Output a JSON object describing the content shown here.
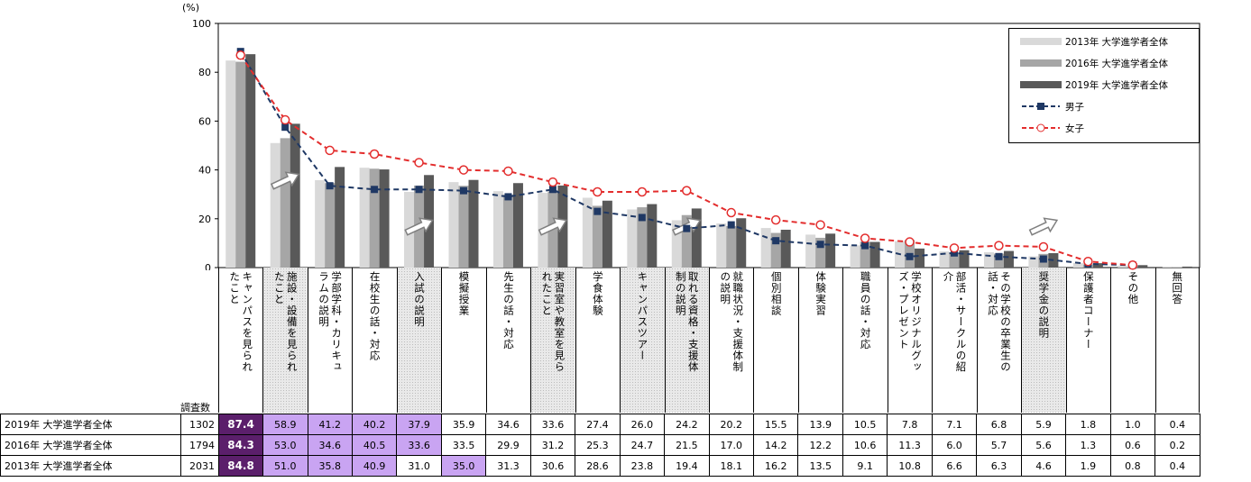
{
  "chart_data": {
    "type": "bar",
    "y_unit_label": "(%)",
    "ylim": [
      0,
      100
    ],
    "yticks": [
      0,
      20,
      40,
      60,
      80,
      100
    ],
    "grid": false,
    "legend_position": "top-right",
    "categories": [
      "キャンパスを見られたこと",
      "施設・設備を見られたこと",
      "学部学科・カリキュラムの説明",
      "在校生の話・対応",
      "入試の説明",
      "模擬授業",
      "先生の話・対応",
      "実習室や教室を見られたこと",
      "学食体験",
      "キャンパスツアー",
      "取れる資格・支援体制の説明",
      "就職状況・支援体制の説明",
      "個別相談",
      "体験実習",
      "職員の話・対応",
      "学校オリジナルグッズ・プレゼント",
      "部活・サークルの紹介",
      "その学校の卒業生の話・対応",
      "奨学金の説明",
      "保護者コーナー",
      "その他",
      "無回答"
    ],
    "category_lines": [
      [
        "キャンパスを見られ",
        "たこと"
      ],
      [
        "施設・設備を見られ",
        "たこと"
      ],
      [
        "学部学科・カリキュ",
        "ラムの説明"
      ],
      [
        "在校生の話・対応"
      ],
      [
        "入試の説明"
      ],
      [
        "模擬授業"
      ],
      [
        "先生の話・対応"
      ],
      [
        "実習室や教室を見ら",
        "れたこと"
      ],
      [
        "学食体験"
      ],
      [
        "キャンパスツアー"
      ],
      [
        "取れる資格・支援体",
        "制の説明"
      ],
      [
        "就職状況・支援体制",
        "の説明"
      ],
      [
        "個別相談"
      ],
      [
        "体験実習"
      ],
      [
        "職員の話・対応"
      ],
      [
        "学校オリジナルグッ",
        "ズ・プレゼント"
      ],
      [
        "部活・サークルの紹",
        "介"
      ],
      [
        "その学校の卒業生の",
        "話・対応"
      ],
      [
        "奨学金の説明"
      ],
      [
        "保護者コーナー"
      ],
      [
        "その他"
      ],
      [
        "無回答"
      ]
    ],
    "shaded_categories": [
      1,
      4,
      7,
      9,
      10,
      18
    ],
    "series": [
      {
        "name": "2013年 大学進学者全体",
        "kind": "bar",
        "color": "#d9d9d9",
        "n": "2031",
        "values": [
          84.8,
          51.0,
          35.8,
          40.9,
          31.0,
          35.0,
          31.3,
          30.6,
          28.6,
          23.8,
          19.4,
          18.1,
          16.2,
          13.5,
          9.1,
          10.8,
          6.6,
          6.3,
          4.6,
          1.9,
          0.8,
          0.4
        ]
      },
      {
        "name": "2016年 大学進学者全体",
        "kind": "bar",
        "color": "#a6a6a6",
        "n": "1794",
        "values": [
          84.3,
          53.0,
          34.6,
          40.5,
          33.6,
          33.5,
          29.9,
          31.2,
          25.3,
          24.7,
          21.5,
          17.0,
          14.2,
          12.2,
          10.6,
          11.3,
          6.0,
          5.7,
          5.6,
          1.3,
          0.6,
          0.2
        ]
      },
      {
        "name": "2019年 大学進学者全体",
        "kind": "bar",
        "color": "#595959",
        "n": "1302",
        "values": [
          87.4,
          58.9,
          41.2,
          40.2,
          37.9,
          35.9,
          34.6,
          33.6,
          27.4,
          26.0,
          24.2,
          20.2,
          15.5,
          13.9,
          10.5,
          7.8,
          7.1,
          6.8,
          5.9,
          1.8,
          1.0,
          0.4
        ]
      },
      {
        "name": "男子",
        "kind": "line",
        "color": "#1f3864",
        "values": [
          88.5,
          57.5,
          33.5,
          32.0,
          32.0,
          31.5,
          29.0,
          32.0,
          23.0,
          20.5,
          16.0,
          17.5,
          11.0,
          9.5,
          9.0,
          4.5,
          6.0,
          4.5,
          3.5,
          1.5,
          1.0,
          null
        ]
      },
      {
        "name": "女子",
        "kind": "line",
        "color": "#e32d2d",
        "values": [
          87.0,
          60.5,
          48.0,
          46.5,
          43.0,
          40.0,
          39.5,
          35.0,
          31.0,
          31.0,
          31.5,
          22.5,
          19.5,
          17.5,
          12.0,
          10.5,
          8.0,
          9.0,
          8.5,
          2.5,
          1.0,
          null
        ]
      }
    ],
    "table": {
      "header_label": "調査数",
      "rows": [
        {
          "label": "2019年 大学進学者全体",
          "n": "1302",
          "values": [
            "87.4",
            "58.9",
            "41.2",
            "40.2",
            "37.9",
            "35.9",
            "34.6",
            "33.6",
            "27.4",
            "26.0",
            "24.2",
            "20.2",
            "15.5",
            "13.9",
            "10.5",
            "7.8",
            "7.1",
            "6.8",
            "5.9",
            "1.8",
            "1.0",
            "0.4"
          ],
          "highlight": {
            "0": "dark",
            "1": "light",
            "2": "light",
            "3": "light",
            "4": "light"
          }
        },
        {
          "label": "2016年 大学進学者全体",
          "n": "1794",
          "values": [
            "84.3",
            "53.0",
            "34.6",
            "40.5",
            "33.6",
            "33.5",
            "29.9",
            "31.2",
            "25.3",
            "24.7",
            "21.5",
            "17.0",
            "14.2",
            "12.2",
            "10.6",
            "11.3",
            "6.0",
            "5.7",
            "5.6",
            "1.3",
            "0.6",
            "0.2"
          ],
          "highlight": {
            "0": "dark",
            "1": "light",
            "2": "light",
            "3": "light",
            "4": "light"
          }
        },
        {
          "label": "2013年 大学進学者全体",
          "n": "2031",
          "values": [
            "84.8",
            "51.0",
            "35.8",
            "40.9",
            "31.0",
            "35.0",
            "31.3",
            "30.6",
            "28.6",
            "23.8",
            "19.4",
            "18.1",
            "16.2",
            "13.5",
            "9.1",
            "10.8",
            "6.6",
            "6.3",
            "4.6",
            "1.9",
            "0.8",
            "0.4"
          ],
          "highlight": {
            "0": "dark",
            "1": "light",
            "2": "light",
            "3": "light",
            "5": "light"
          }
        }
      ]
    },
    "up_arrow_categories": [
      1,
      4,
      7,
      10,
      18
    ]
  }
}
